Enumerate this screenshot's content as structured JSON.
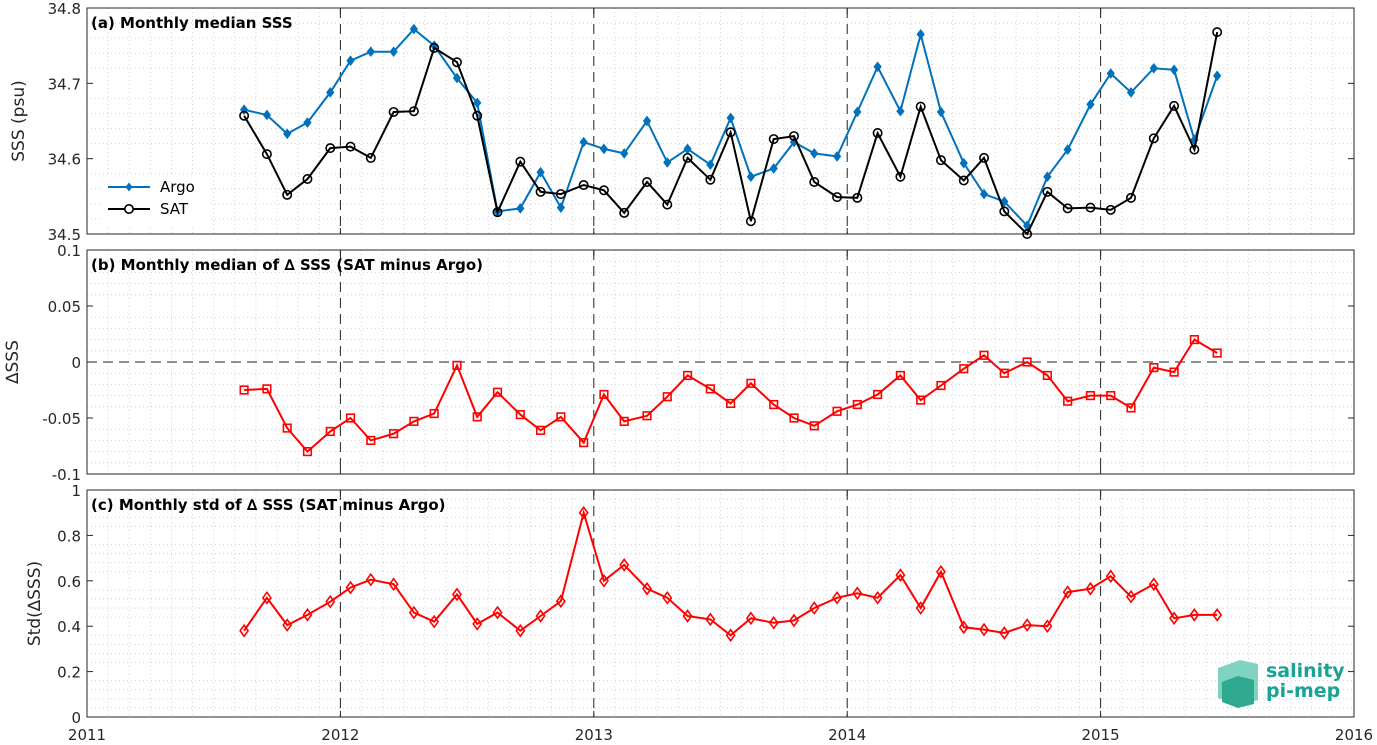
{
  "chart_data": [
    {
      "type": "line",
      "title": "(a) Monthly median SSS",
      "xlabel": "",
      "ylabel": "SSS (psu)",
      "xlim": [
        2011,
        2016
      ],
      "ylim": [
        34.5,
        34.8
      ],
      "x_ticks": [
        "2011",
        "2012",
        "2013",
        "2014",
        "2015",
        "2016"
      ],
      "y_ticks": [
        "34.5",
        "34.6",
        "34.7",
        "34.8"
      ],
      "grid": "dotted minor",
      "legend_position": "left",
      "x": [
        2011.62,
        2011.71,
        2011.79,
        2011.87,
        2011.96,
        2012.04,
        2012.12,
        2012.21,
        2012.29,
        2012.37,
        2012.46,
        2012.54,
        2012.62,
        2012.71,
        2012.79,
        2012.87,
        2012.96,
        2013.04,
        2013.12,
        2013.21,
        2013.29,
        2013.37,
        2013.46,
        2013.54,
        2013.62,
        2013.71,
        2013.79,
        2013.87,
        2013.96,
        2014.04,
        2014.12,
        2014.21,
        2014.29,
        2014.37,
        2014.46,
        2014.54,
        2014.62,
        2014.71,
        2014.79,
        2014.87,
        2014.96,
        2015.04,
        2015.12,
        2015.21,
        2015.29,
        2015.37,
        2015.46
      ],
      "series": [
        {
          "name": "Argo",
          "color": "#0072bd",
          "marker": "diamond-filled",
          "values": [
            34.665,
            34.658,
            34.633,
            34.648,
            34.688,
            34.73,
            34.742,
            34.742,
            34.772,
            34.75,
            34.707,
            34.674,
            34.53,
            34.534,
            34.582,
            34.535,
            34.622,
            34.613,
            34.607,
            34.65,
            34.595,
            34.613,
            34.592,
            34.654,
            34.576,
            34.587,
            34.622,
            34.607,
            34.603,
            34.662,
            34.722,
            34.663,
            34.765,
            34.662,
            34.594,
            34.553,
            34.543,
            34.511,
            34.576,
            34.612,
            34.672,
            34.713,
            34.688,
            34.72,
            34.718,
            34.625,
            34.71
          ]
        },
        {
          "name": "SAT",
          "color": "#000000",
          "marker": "circle-open",
          "values": [
            34.657,
            34.606,
            34.552,
            34.573,
            34.614,
            34.616,
            34.601,
            34.662,
            34.663,
            34.747,
            34.728,
            34.657,
            34.529,
            34.596,
            34.556,
            34.553,
            34.565,
            34.558,
            34.528,
            34.569,
            34.539,
            34.601,
            34.572,
            34.635,
            34.517,
            34.626,
            34.63,
            34.569,
            34.549,
            34.548,
            34.634,
            34.576,
            34.669,
            34.598,
            34.571,
            34.601,
            34.53,
            34.5,
            34.556,
            34.534,
            34.535,
            34.532,
            34.548,
            34.627,
            34.67,
            34.612,
            34.768
          ]
        }
      ]
    },
    {
      "type": "line",
      "title": "(b) Monthly median of ∆ SSS (SAT minus Argo)",
      "xlabel": "",
      "ylabel": "∆SSS",
      "xlim": [
        2011,
        2016
      ],
      "ylim": [
        -0.1,
        0.1
      ],
      "y_ticks": [
        "-0.1",
        "-0.05",
        "0",
        "0.05",
        "0.1"
      ],
      "grid": "dotted minor",
      "series": [
        {
          "color": "#ff0000",
          "marker": "square-open",
          "values": [
            -0.025,
            -0.024,
            -0.059,
            -0.08,
            -0.062,
            -0.05,
            -0.07,
            -0.064,
            -0.053,
            -0.046,
            -0.003,
            -0.049,
            -0.027,
            -0.047,
            -0.061,
            -0.049,
            -0.072,
            -0.029,
            -0.053,
            -0.048,
            -0.031,
            -0.012,
            -0.024,
            -0.037,
            -0.019,
            -0.038,
            -0.05,
            -0.057,
            -0.044,
            -0.038,
            -0.029,
            -0.012,
            -0.034,
            -0.021,
            -0.006,
            0.006,
            -0.01,
            0.0,
            -0.012,
            -0.035,
            -0.03,
            -0.03,
            -0.041,
            -0.005,
            -0.009,
            0.02,
            0.008
          ]
        }
      ]
    },
    {
      "type": "line",
      "title": "(c) Monthly std of ∆ SSS (SAT minus Argo)",
      "xlabel": "",
      "ylabel": "Std(∆SSS)",
      "xlim": [
        2011,
        2016
      ],
      "ylim": [
        0,
        1
      ],
      "y_ticks": [
        "0",
        "0.2",
        "0.4",
        "0.6",
        "0.8",
        "1"
      ],
      "grid": "dotted minor",
      "series": [
        {
          "color": "#ff0000",
          "marker": "diamond-open",
          "values": [
            0.38,
            0.525,
            0.405,
            0.45,
            0.508,
            0.57,
            0.605,
            0.585,
            0.46,
            0.42,
            0.54,
            0.41,
            0.46,
            0.38,
            0.445,
            0.51,
            0.9,
            0.6,
            0.67,
            0.565,
            0.525,
            0.445,
            0.43,
            0.36,
            0.435,
            0.415,
            0.425,
            0.48,
            0.525,
            0.545,
            0.525,
            0.625,
            0.48,
            0.64,
            0.395,
            0.385,
            0.37,
            0.405,
            0.4,
            0.55,
            0.565,
            0.62,
            0.53,
            0.585,
            0.435,
            0.45,
            0.45
          ]
        }
      ]
    }
  ],
  "logo": {
    "line1": "salinity",
    "line2": "pi-mep"
  }
}
